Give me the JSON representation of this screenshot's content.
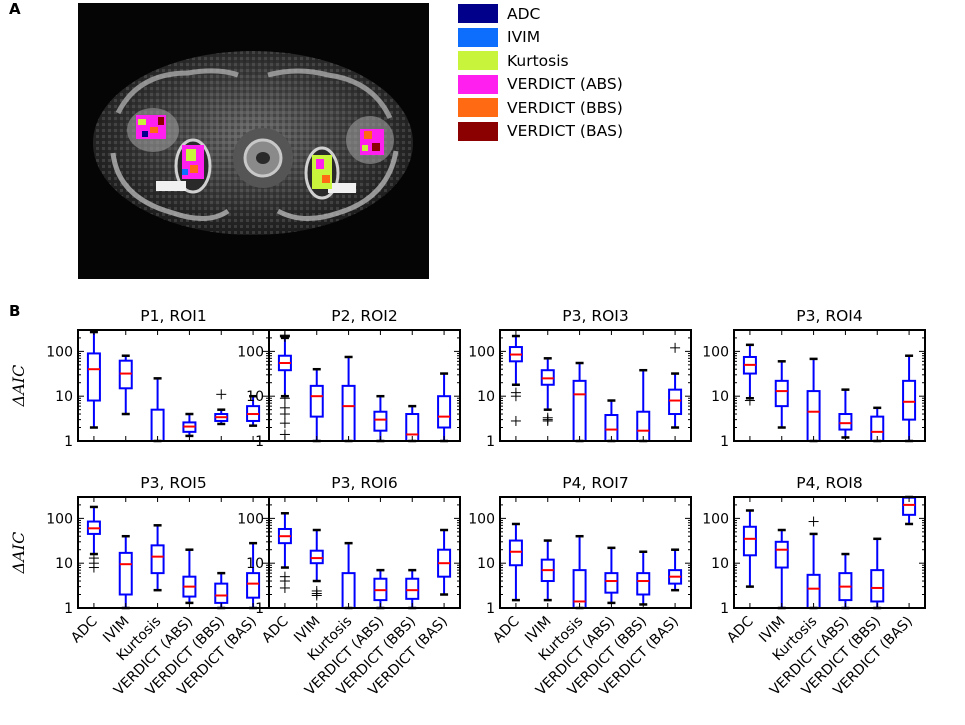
{
  "panel_a_label": "A",
  "panel_b_label": "B",
  "legend": [
    {
      "label": "ADC",
      "color": "#00008b"
    },
    {
      "label": "IVIM",
      "color": "#0d6efd"
    },
    {
      "label": "Kurtosis",
      "color": "#c8f53c"
    },
    {
      "label": "VERDICT (ABS)",
      "color": "#ff1fef"
    },
    {
      "label": "VERDICT (BBS)",
      "color": "#ff6a13"
    },
    {
      "label": "VERDICT (BAS)",
      "color": "#8b0000"
    }
  ],
  "chart_data": [
    {
      "type": "box",
      "title": "P1, ROI1",
      "ylabel": "ΔAIC",
      "yscale": "log",
      "ylim": [
        1,
        300
      ],
      "yticks": [
        "1",
        "10",
        "100"
      ],
      "categories": [
        "ADC",
        "IVIM",
        "Kurtosis",
        "VERDICT (ABS)",
        "VERDICT (BBS)",
        "VERDICT (BAS)"
      ],
      "boxes": [
        {
          "whislo": 2,
          "q1": 8,
          "med": 40,
          "q3": 90,
          "whishi": 270,
          "fliers": []
        },
        {
          "whislo": 4,
          "q1": 15,
          "med": 32,
          "q3": 62,
          "whishi": 80,
          "fliers": []
        },
        {
          "whislo": 1,
          "q1": 1,
          "med": 1,
          "q3": 5,
          "whishi": 25,
          "fliers": []
        },
        {
          "whislo": 1.3,
          "q1": 1.6,
          "med": 2.1,
          "q3": 2.6,
          "whishi": 4,
          "fliers": []
        },
        {
          "whislo": 2.4,
          "q1": 2.8,
          "med": 3.4,
          "q3": 4,
          "whishi": 5,
          "fliers": [
            11
          ]
        },
        {
          "whislo": 2.2,
          "q1": 2.8,
          "med": 4,
          "q3": 6,
          "whishi": 10,
          "fliers": []
        }
      ]
    },
    {
      "type": "box",
      "title": "P2, ROI2",
      "ylabel": "",
      "yscale": "log",
      "ylim": [
        1,
        300
      ],
      "yticks": [
        "1",
        "10",
        "100"
      ],
      "categories": [
        "ADC",
        "IVIM",
        "Kurtosis",
        "VERDICT (ABS)",
        "VERDICT (BBS)",
        "VERDICT (BAS)"
      ],
      "boxes": [
        {
          "whislo": 10,
          "q1": 38,
          "med": 55,
          "q3": 80,
          "whishi": 200,
          "fliers": [
            1.4,
            2.5,
            4,
            5.5,
            9,
            210,
            220,
            230
          ]
        },
        {
          "whislo": 1,
          "q1": 3.5,
          "med": 10,
          "q3": 17,
          "whishi": 40,
          "fliers": []
        },
        {
          "whislo": 1,
          "q1": 1,
          "med": 6,
          "q3": 17,
          "whishi": 75,
          "fliers": []
        },
        {
          "whislo": 1,
          "q1": 1.7,
          "med": 3,
          "q3": 4.5,
          "whishi": 10,
          "fliers": []
        },
        {
          "whislo": 1,
          "q1": 1,
          "med": 1.4,
          "q3": 4,
          "whishi": 6,
          "fliers": []
        },
        {
          "whislo": 1,
          "q1": 2,
          "med": 3.5,
          "q3": 10,
          "whishi": 32,
          "fliers": []
        }
      ]
    },
    {
      "type": "box",
      "title": "P3, ROI3",
      "ylabel": "",
      "yscale": "log",
      "ylim": [
        1,
        300
      ],
      "yticks": [
        "1",
        "10",
        "100"
      ],
      "categories": [
        "ADC",
        "IVIM",
        "Kurtosis",
        "VERDICT (ABS)",
        "VERDICT (BBS)",
        "VERDICT (BAS)"
      ],
      "boxes": [
        {
          "whislo": 18,
          "q1": 60,
          "med": 85,
          "q3": 125,
          "whishi": 220,
          "fliers": [
            2.8,
            10,
            12
          ]
        },
        {
          "whislo": 5,
          "q1": 18,
          "med": 25,
          "q3": 38,
          "whishi": 70,
          "fliers": [
            2.8,
            3,
            3.3
          ]
        },
        {
          "whislo": 1,
          "q1": 1,
          "med": 11,
          "q3": 22,
          "whishi": 55,
          "fliers": []
        },
        {
          "whislo": 1,
          "q1": 1,
          "med": 1.8,
          "q3": 3.8,
          "whishi": 8,
          "fliers": []
        },
        {
          "whislo": 1,
          "q1": 1,
          "med": 1.7,
          "q3": 4.5,
          "whishi": 38,
          "fliers": []
        },
        {
          "whislo": 2,
          "q1": 4,
          "med": 8,
          "q3": 14,
          "whishi": 32,
          "fliers": [
            120
          ]
        }
      ]
    },
    {
      "type": "box",
      "title": "P3, ROI4",
      "ylabel": "",
      "yscale": "log",
      "ylim": [
        1,
        300
      ],
      "yticks": [
        "1",
        "10",
        "100"
      ],
      "categories": [
        "ADC",
        "IVIM",
        "Kurtosis",
        "VERDICT (ABS)",
        "VERDICT (BBS)",
        "VERDICT (BAS)"
      ],
      "boxes": [
        {
          "whislo": 9,
          "q1": 32,
          "med": 50,
          "q3": 75,
          "whishi": 140,
          "fliers": [
            8
          ]
        },
        {
          "whislo": 2,
          "q1": 6,
          "med": 13,
          "q3": 22,
          "whishi": 60,
          "fliers": []
        },
        {
          "whislo": 1,
          "q1": 1,
          "med": 4.5,
          "q3": 13,
          "whishi": 68,
          "fliers": []
        },
        {
          "whislo": 1.2,
          "q1": 1.8,
          "med": 2.5,
          "q3": 4,
          "whishi": 14,
          "fliers": []
        },
        {
          "whislo": 1,
          "q1": 1,
          "med": 1.6,
          "q3": 3.5,
          "whishi": 5.5,
          "fliers": []
        },
        {
          "whislo": 1,
          "q1": 3,
          "med": 7.5,
          "q3": 22,
          "whishi": 80,
          "fliers": []
        }
      ]
    },
    {
      "type": "box",
      "title": "P3, ROI5",
      "ylabel": "ΔAIC",
      "yscale": "log",
      "ylim": [
        1,
        300
      ],
      "yticks": [
        "1",
        "10",
        "100"
      ],
      "categories": [
        "ADC",
        "IVIM",
        "Kurtosis",
        "VERDICT (ABS)",
        "VERDICT (BBS)",
        "VERDICT (BAS)"
      ],
      "boxes": [
        {
          "whislo": 16,
          "q1": 45,
          "med": 60,
          "q3": 85,
          "whishi": 180,
          "fliers": [
            8,
            10,
            13
          ]
        },
        {
          "whislo": 1,
          "q1": 2,
          "med": 9.5,
          "q3": 17,
          "whishi": 40,
          "fliers": []
        },
        {
          "whislo": 2.5,
          "q1": 6,
          "med": 14,
          "q3": 25,
          "whishi": 70,
          "fliers": []
        },
        {
          "whislo": 1.3,
          "q1": 1.8,
          "med": 3,
          "q3": 5,
          "whishi": 20,
          "fliers": []
        },
        {
          "whislo": 1,
          "q1": 1.3,
          "med": 1.9,
          "q3": 3.5,
          "whishi": 6,
          "fliers": []
        },
        {
          "whislo": 1,
          "q1": 1.7,
          "med": 3.5,
          "q3": 6,
          "whishi": 28,
          "fliers": []
        }
      ]
    },
    {
      "type": "box",
      "title": "P3, ROI6",
      "ylabel": "",
      "yscale": "log",
      "ylim": [
        1,
        300
      ],
      "yticks": [
        "1",
        "10",
        "100"
      ],
      "categories": [
        "ADC",
        "IVIM",
        "Kurtosis",
        "VERDICT (ABS)",
        "VERDICT (BBS)",
        "VERDICT (BAS)"
      ],
      "boxes": [
        {
          "whislo": 8,
          "q1": 28,
          "med": 40,
          "q3": 58,
          "whishi": 130,
          "fliers": [
            2.8,
            4,
            5
          ]
        },
        {
          "whislo": 4,
          "q1": 10,
          "med": 13,
          "q3": 19,
          "whishi": 55,
          "fliers": [
            1.9,
            2.1,
            2.4
          ]
        },
        {
          "whislo": 1,
          "q1": 1,
          "med": 1,
          "q3": 6,
          "whishi": 28,
          "fliers": []
        },
        {
          "whislo": 1,
          "q1": 1.5,
          "med": 2.5,
          "q3": 4.5,
          "whishi": 7,
          "fliers": []
        },
        {
          "whislo": 1,
          "q1": 1.6,
          "med": 2.5,
          "q3": 4.5,
          "whishi": 7,
          "fliers": []
        },
        {
          "whislo": 2,
          "q1": 5,
          "med": 10,
          "q3": 20,
          "whishi": 55,
          "fliers": []
        }
      ]
    },
    {
      "type": "box",
      "title": "P4, ROI7",
      "ylabel": "",
      "yscale": "log",
      "ylim": [
        1,
        300
      ],
      "yticks": [
        "1",
        "10",
        "100"
      ],
      "categories": [
        "ADC",
        "IVIM",
        "Kurtosis",
        "VERDICT (ABS)",
        "VERDICT (BBS)",
        "VERDICT (BAS)"
      ],
      "boxes": [
        {
          "whislo": 1.5,
          "q1": 9,
          "med": 18,
          "q3": 32,
          "whishi": 75,
          "fliers": []
        },
        {
          "whislo": 1.5,
          "q1": 4,
          "med": 7,
          "q3": 12,
          "whishi": 32,
          "fliers": []
        },
        {
          "whislo": 1,
          "q1": 1,
          "med": 1.4,
          "q3": 7,
          "whishi": 40,
          "fliers": []
        },
        {
          "whislo": 1.3,
          "q1": 2.2,
          "med": 4,
          "q3": 6,
          "whishi": 22,
          "fliers": []
        },
        {
          "whislo": 1.2,
          "q1": 2,
          "med": 4,
          "q3": 6,
          "whishi": 18,
          "fliers": []
        },
        {
          "whislo": 2.5,
          "q1": 3.5,
          "med": 5,
          "q3": 7,
          "whishi": 20,
          "fliers": []
        }
      ]
    },
    {
      "type": "box",
      "title": "P4, ROI8",
      "ylabel": "",
      "yscale": "log",
      "ylim": [
        1,
        300
      ],
      "yticks": [
        "1",
        "10",
        "100"
      ],
      "categories": [
        "ADC",
        "IVIM",
        "Kurtosis",
        "VERDICT (ABS)",
        "VERDICT (BBS)",
        "VERDICT (BAS)"
      ],
      "boxes": [
        {
          "whislo": 3,
          "q1": 15,
          "med": 35,
          "q3": 65,
          "whishi": 150,
          "fliers": []
        },
        {
          "whislo": 1,
          "q1": 8,
          "med": 20,
          "q3": 30,
          "whishi": 55,
          "fliers": []
        },
        {
          "whislo": 1,
          "q1": 1,
          "med": 2.7,
          "q3": 5.5,
          "whishi": 45,
          "fliers": [
            85
          ]
        },
        {
          "whislo": 1,
          "q1": 1.5,
          "med": 3,
          "q3": 6,
          "whishi": 16,
          "fliers": []
        },
        {
          "whislo": 1,
          "q1": 1.4,
          "med": 2.8,
          "q3": 7,
          "whishi": 35,
          "fliers": []
        },
        {
          "whislo": 75,
          "q1": 120,
          "med": 200,
          "q3": 290,
          "whishi": 300,
          "fliers": []
        }
      ]
    }
  ]
}
